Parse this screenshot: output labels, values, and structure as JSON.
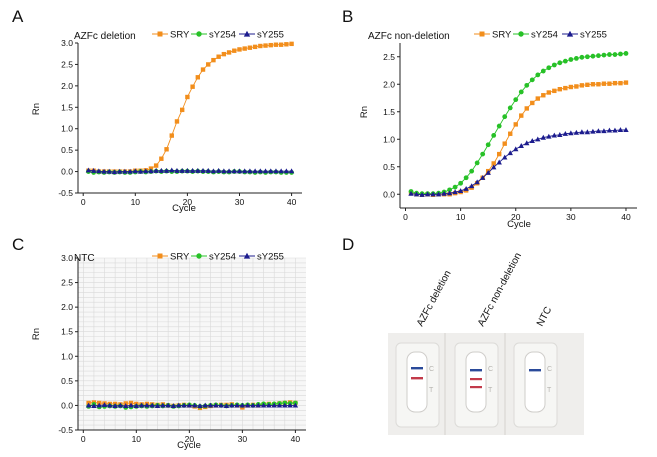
{
  "colors": {
    "SRY": "#f28e1c",
    "sY254": "#27c127",
    "sY255": "#1c1c8e",
    "axis": "#222222",
    "grid": "#d9d9d9"
  },
  "chart_data": [
    {
      "panel_letter": "A",
      "type": "line",
      "title": "AZFc deletion",
      "xlabel": "Cycle",
      "ylabel": "Rn",
      "xlim": [
        -1,
        42
      ],
      "ylim": [
        -0.5,
        3.0
      ],
      "xticks": [
        0,
        10,
        20,
        30,
        40
      ],
      "xtick_labels": [
        "0",
        "10",
        "20",
        "30",
        "40"
      ],
      "yticks": [
        -0.5,
        0.0,
        0.5,
        1.0,
        1.5,
        2.0,
        2.5,
        3.0
      ],
      "ytick_labels": [
        "-0.5",
        "0.0",
        "0.5",
        "1.0",
        "1.5",
        "2.0",
        "2.5",
        "3.0"
      ],
      "grid": false,
      "legend": "top-right",
      "x": [
        1,
        2,
        3,
        4,
        5,
        6,
        7,
        8,
        9,
        10,
        11,
        12,
        13,
        14,
        15,
        16,
        17,
        18,
        19,
        20,
        21,
        22,
        23,
        24,
        25,
        26,
        27,
        28,
        29,
        30,
        31,
        32,
        33,
        34,
        35,
        36,
        37,
        38,
        39,
        40
      ],
      "series": [
        {
          "name": "SRY",
          "marker": "square",
          "values": [
            0.02,
            0.02,
            0.0,
            0.0,
            0.0,
            0.0,
            0.0,
            0.0,
            0.0,
            0.02,
            0.02,
            0.03,
            0.07,
            0.14,
            0.3,
            0.52,
            0.84,
            1.17,
            1.44,
            1.74,
            1.98,
            2.2,
            2.38,
            2.5,
            2.6,
            2.68,
            2.74,
            2.78,
            2.82,
            2.85,
            2.87,
            2.89,
            2.91,
            2.93,
            2.94,
            2.95,
            2.96,
            2.96,
            2.97,
            2.98
          ]
        },
        {
          "name": "sY254",
          "marker": "circle",
          "values": [
            0.0,
            -0.02,
            -0.01,
            -0.02,
            -0.01,
            -0.02,
            -0.01,
            -0.02,
            -0.02,
            -0.01,
            0.0,
            -0.01,
            0.0,
            0.01,
            0.0,
            0.01,
            0.0,
            0.0,
            0.01,
            0.01,
            0.0,
            0.01,
            0.0,
            0.0,
            -0.01,
            0.0,
            -0.01,
            -0.01,
            0.0,
            0.0,
            -0.01,
            -0.01,
            -0.02,
            -0.01,
            -0.02,
            -0.01,
            -0.01,
            -0.02,
            -0.02,
            -0.02
          ]
        },
        {
          "name": "sY255",
          "marker": "triangle",
          "values": [
            0.03,
            0.02,
            0.01,
            0.0,
            0.0,
            -0.01,
            0.0,
            0.0,
            0.0,
            0.01,
            0.0,
            0.01,
            0.01,
            0.02,
            0.02,
            0.02,
            0.03,
            0.02,
            0.02,
            0.02,
            0.02,
            0.02,
            0.02,
            0.02,
            0.01,
            0.02,
            0.01,
            0.01,
            0.01,
            0.01,
            0.01,
            0.01,
            0.01,
            0.01,
            0.01,
            0.01,
            0.01,
            0.01,
            0.01,
            0.01
          ]
        }
      ]
    },
    {
      "panel_letter": "B",
      "type": "line",
      "title": "AZFc non-deletion",
      "xlabel": "Cycle",
      "ylabel": "Rn",
      "xlim": [
        -1,
        42
      ],
      "ylim": [
        -0.25,
        2.75
      ],
      "xticks": [
        0,
        10,
        20,
        30,
        40
      ],
      "xtick_labels": [
        "0",
        "10",
        "20",
        "30",
        "40"
      ],
      "yticks": [
        0.0,
        0.5,
        1.0,
        1.5,
        2.0,
        2.5
      ],
      "ytick_labels": [
        "0.0",
        "0.5",
        "1.0",
        "1.5",
        "2.0",
        "2.5"
      ],
      "grid": false,
      "legend": "top-right",
      "x": [
        1,
        2,
        3,
        4,
        5,
        6,
        7,
        8,
        9,
        10,
        11,
        12,
        13,
        14,
        15,
        16,
        17,
        18,
        19,
        20,
        21,
        22,
        23,
        24,
        25,
        26,
        27,
        28,
        29,
        30,
        31,
        32,
        33,
        34,
        35,
        36,
        37,
        38,
        39,
        40
      ],
      "series": [
        {
          "name": "SRY",
          "marker": "square",
          "values": [
            0.02,
            0.0,
            -0.01,
            0.0,
            -0.01,
            0.0,
            0.0,
            0.0,
            0.02,
            0.04,
            0.07,
            0.12,
            0.2,
            0.3,
            0.42,
            0.56,
            0.73,
            0.92,
            1.1,
            1.27,
            1.43,
            1.56,
            1.66,
            1.74,
            1.8,
            1.85,
            1.88,
            1.91,
            1.93,
            1.95,
            1.96,
            1.98,
            1.99,
            2.0,
            2.0,
            2.01,
            2.01,
            2.02,
            2.02,
            2.03
          ]
        },
        {
          "name": "sY254",
          "marker": "circle",
          "values": [
            0.05,
            0.02,
            0.01,
            0.01,
            0.01,
            0.02,
            0.04,
            0.08,
            0.13,
            0.2,
            0.3,
            0.42,
            0.57,
            0.73,
            0.9,
            1.07,
            1.24,
            1.41,
            1.57,
            1.72,
            1.86,
            1.98,
            2.08,
            2.17,
            2.24,
            2.3,
            2.35,
            2.39,
            2.42,
            2.45,
            2.47,
            2.49,
            2.5,
            2.51,
            2.52,
            2.53,
            2.54,
            2.54,
            2.55,
            2.56
          ]
        },
        {
          "name": "sY255",
          "marker": "triangle",
          "values": [
            0.01,
            0.0,
            -0.01,
            0.0,
            0.0,
            0.0,
            0.01,
            0.02,
            0.04,
            0.06,
            0.1,
            0.15,
            0.22,
            0.3,
            0.39,
            0.49,
            0.58,
            0.67,
            0.75,
            0.82,
            0.88,
            0.93,
            0.97,
            1.0,
            1.03,
            1.05,
            1.07,
            1.08,
            1.1,
            1.11,
            1.12,
            1.13,
            1.13,
            1.14,
            1.15,
            1.15,
            1.16,
            1.16,
            1.17,
            1.17
          ]
        }
      ]
    },
    {
      "panel_letter": "C",
      "type": "line",
      "title": "NTC",
      "xlabel": "Cycle",
      "ylabel": "Rn",
      "xlim": [
        -1,
        42
      ],
      "ylim": [
        -0.5,
        3.0
      ],
      "xticks": [
        0,
        10,
        20,
        30,
        40
      ],
      "xtick_labels": [
        "0",
        "10",
        "20",
        "30",
        "40"
      ],
      "yticks": [
        -0.5,
        0.0,
        0.5,
        1.0,
        1.5,
        2.0,
        2.5,
        3.0
      ],
      "ytick_labels": [
        "-0.5",
        "0.0",
        "0.5",
        "1.0",
        "1.5",
        "2.0",
        "2.5",
        "3.0"
      ],
      "grid": true,
      "legend": "top-right",
      "x": [
        1,
        2,
        3,
        4,
        5,
        6,
        7,
        8,
        9,
        10,
        11,
        12,
        13,
        14,
        15,
        16,
        17,
        18,
        19,
        20,
        21,
        22,
        23,
        24,
        25,
        26,
        27,
        28,
        29,
        30,
        31,
        32,
        33,
        34,
        35,
        36,
        37,
        38,
        39,
        40
      ],
      "series": [
        {
          "name": "SRY",
          "marker": "square",
          "values": [
            0.05,
            0.06,
            0.05,
            0.04,
            0.03,
            0.03,
            0.02,
            0.04,
            0.05,
            0.03,
            0.02,
            0.03,
            0.02,
            0.01,
            0.02,
            0.0,
            -0.01,
            0.0,
            0.01,
            0.0,
            -0.02,
            -0.05,
            -0.03,
            -0.01,
            0.0,
            0.01,
            0.01,
            0.02,
            0.0,
            -0.04,
            0.0,
            0.01,
            0.0,
            0.02,
            0.03,
            0.02,
            0.04,
            0.05,
            0.06,
            0.05
          ]
        },
        {
          "name": "sY254",
          "marker": "circle",
          "values": [
            -0.02,
            0.02,
            -0.03,
            -0.02,
            -0.01,
            -0.02,
            -0.01,
            -0.04,
            -0.03,
            -0.02,
            -0.01,
            -0.02,
            -0.01,
            0.0,
            -0.01,
            0.0,
            -0.02,
            -0.01,
            0.0,
            0.01,
            0.0,
            -0.02,
            -0.01,
            0.0,
            0.01,
            0.0,
            -0.01,
            0.0,
            0.01,
            0.0,
            0.01,
            0.0,
            0.02,
            0.03,
            0.02,
            0.03,
            0.04,
            0.05,
            0.04,
            0.05
          ]
        },
        {
          "name": "sY255",
          "marker": "triangle",
          "values": [
            0.0,
            -0.01,
            0.0,
            0.01,
            0.0,
            -0.01,
            0.0,
            -0.01,
            0.0,
            -0.01,
            0.0,
            0.0,
            0.0,
            -0.01,
            0.0,
            0.0,
            -0.01,
            0.0,
            0.0,
            0.0,
            0.0,
            -0.01,
            0.0,
            0.0,
            0.0,
            0.0,
            -0.01,
            0.0,
            0.0,
            0.0,
            0.0,
            0.0,
            0.0,
            0.0,
            0.0,
            0.0,
            0.0,
            0.0,
            0.0,
            0.0
          ]
        }
      ]
    }
  ],
  "panel_d": {
    "panel_letter": "D",
    "strip_labels": [
      "AZFc deletion",
      "AZFc non-deletion",
      "NTC"
    ],
    "control_mark": "C",
    "test_mark": "T"
  }
}
